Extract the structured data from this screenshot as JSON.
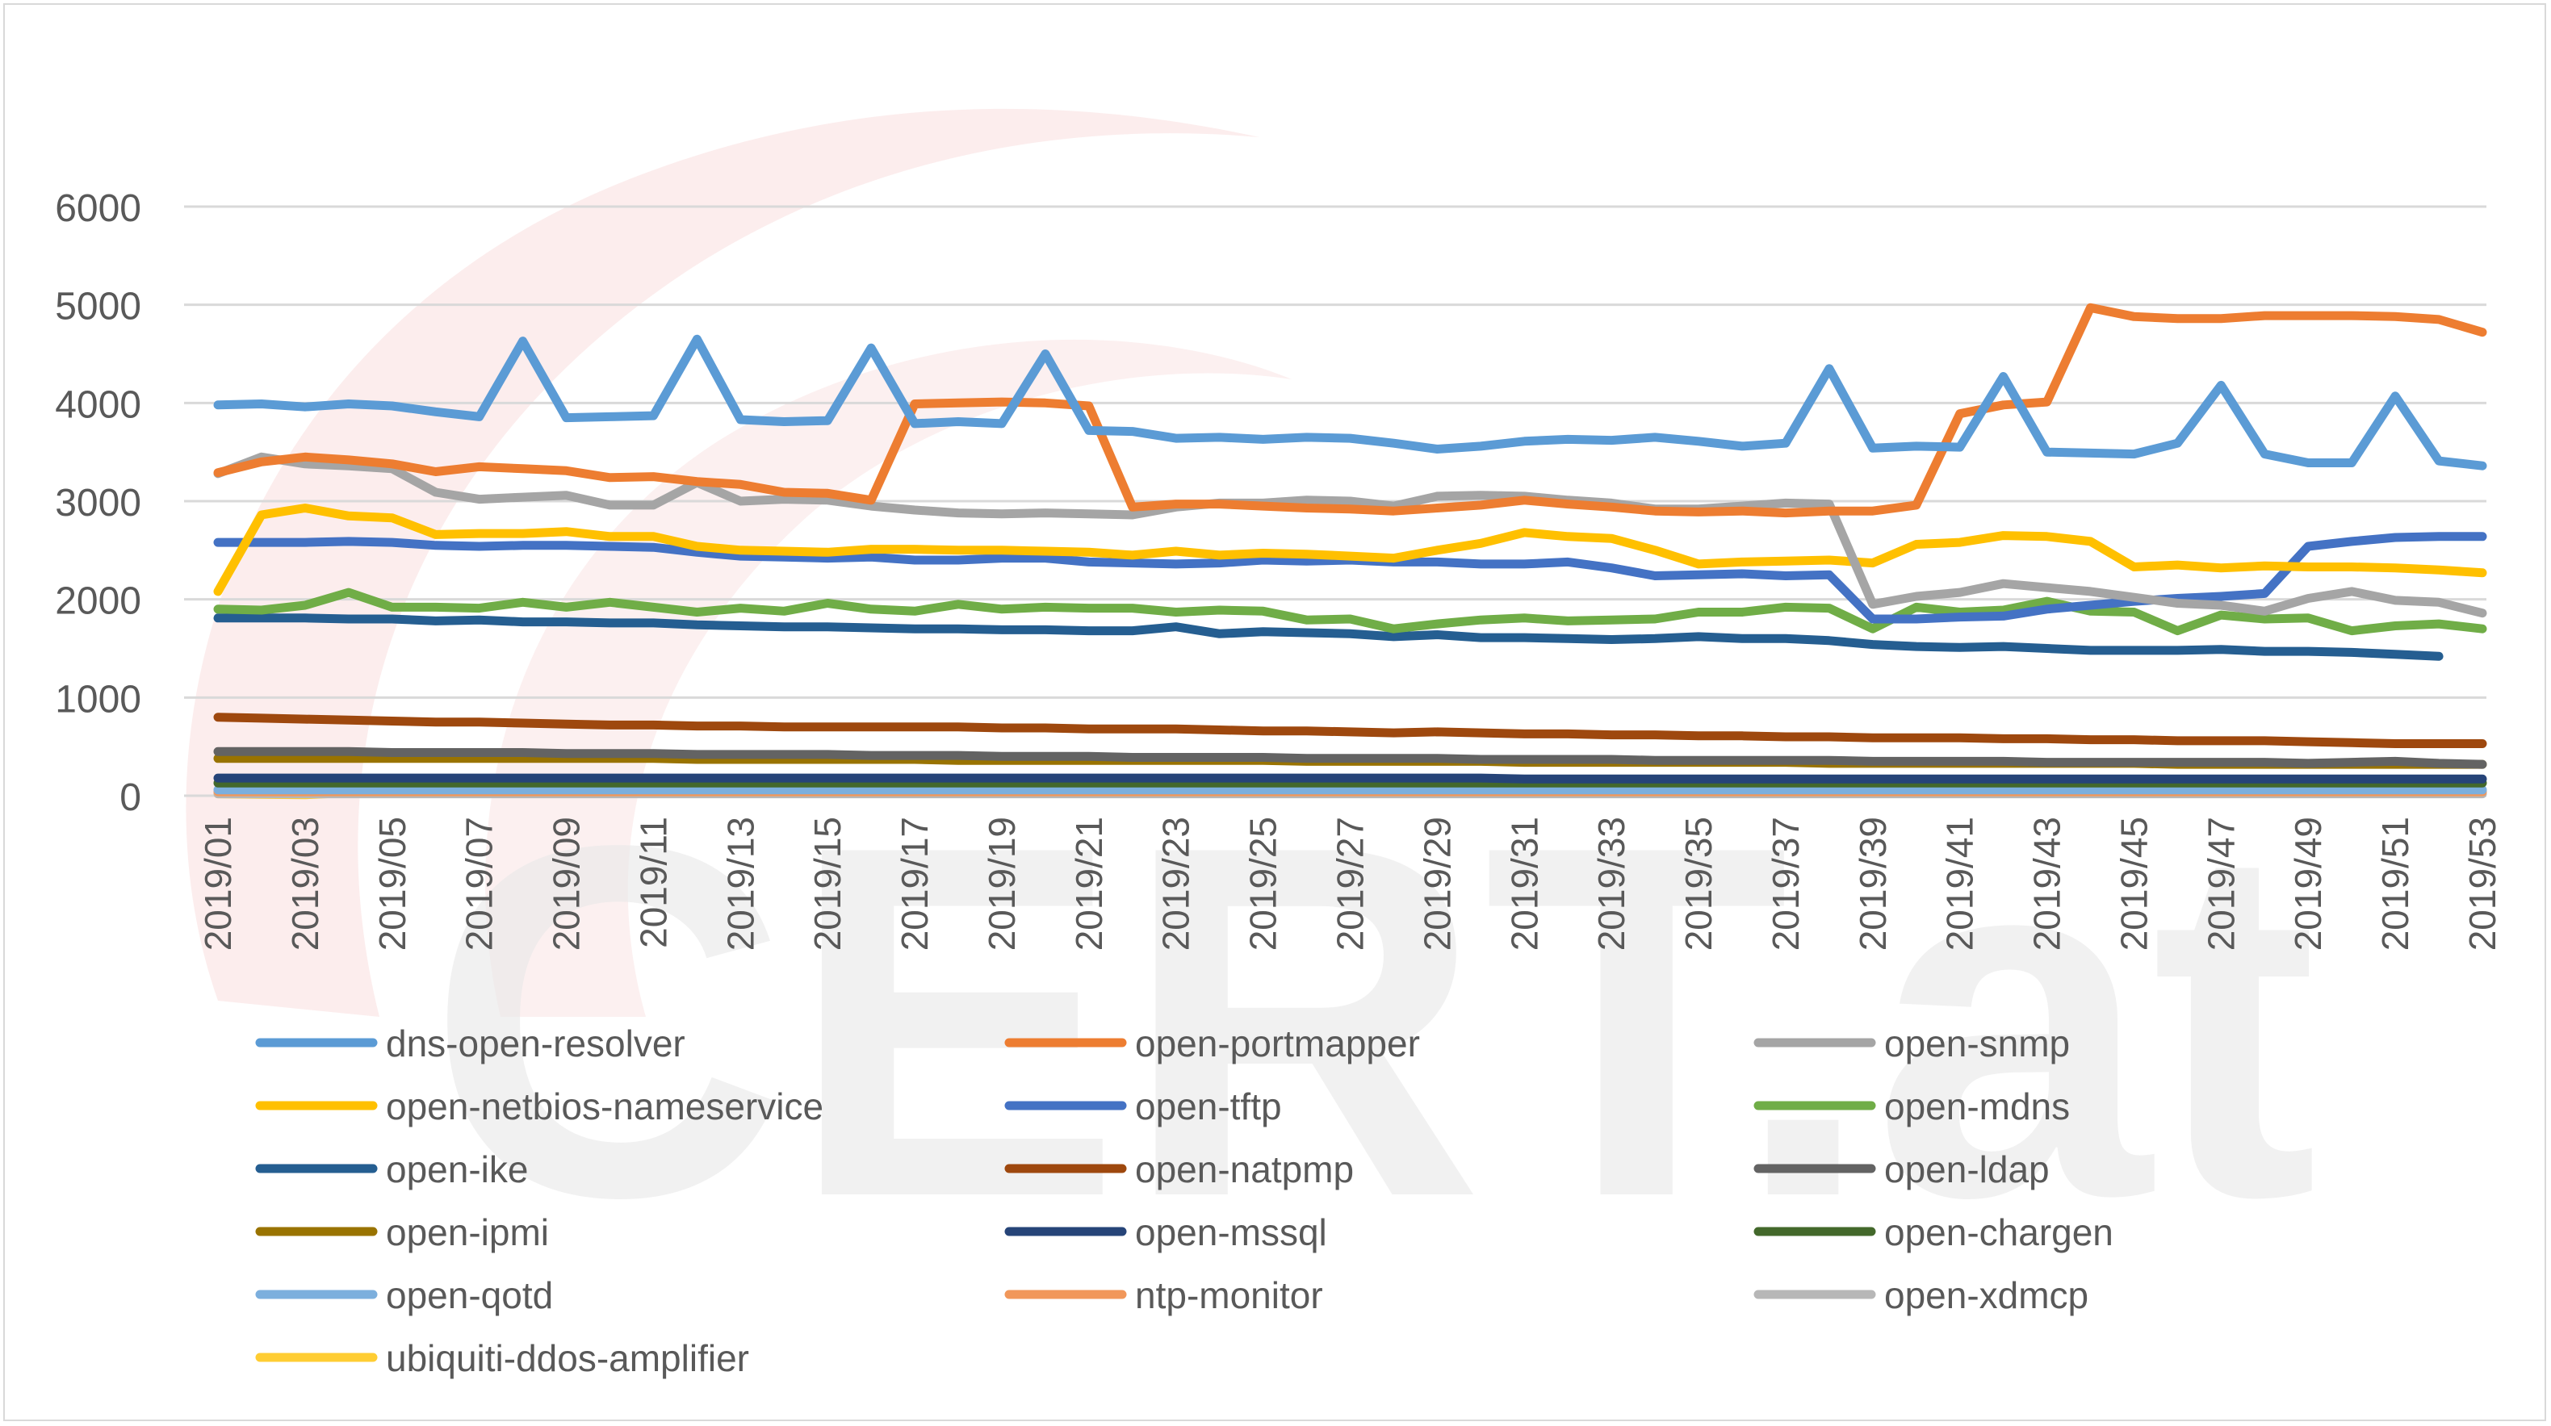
{
  "chart_data": {
    "type": "line",
    "title": "",
    "xlabel": "",
    "ylabel": "",
    "ylim": [
      0,
      6000
    ],
    "yticks": [
      0,
      1000,
      2000,
      3000,
      4000,
      5000,
      6000
    ],
    "grid": "horizontal",
    "legend_position": "bottom",
    "watermark_text": "CERT.at",
    "categories": [
      "2019/01",
      "2019/02",
      "2019/03",
      "2019/04",
      "2019/05",
      "2019/06",
      "2019/07",
      "2019/08",
      "2019/09",
      "2019/10",
      "2019/11",
      "2019/12",
      "2019/13",
      "2019/14",
      "2019/15",
      "2019/16",
      "2019/17",
      "2019/18",
      "2019/19",
      "2019/20",
      "2019/21",
      "2019/22",
      "2019/23",
      "2019/24",
      "2019/25",
      "2019/26",
      "2019/27",
      "2019/28",
      "2019/29",
      "2019/30",
      "2019/31",
      "2019/32",
      "2019/33",
      "2019/34",
      "2019/35",
      "2019/36",
      "2019/37",
      "2019/38",
      "2019/39",
      "2019/40",
      "2019/41",
      "2019/42",
      "2019/43",
      "2019/44",
      "2019/45",
      "2019/46",
      "2019/47",
      "2019/48",
      "2019/49",
      "2019/50",
      "2019/51",
      "2019/52",
      "2019/53"
    ],
    "tick_labels": [
      "2019/01",
      "2019/03",
      "2019/05",
      "2019/07",
      "2019/09",
      "2019/11",
      "2019/13",
      "2019/15",
      "2019/17",
      "2019/19",
      "2019/21",
      "2019/23",
      "2019/25",
      "2019/27",
      "2019/29",
      "2019/31",
      "2019/33",
      "2019/35",
      "2019/37",
      "2019/39",
      "2019/41",
      "2019/43",
      "2019/45",
      "2019/47",
      "2019/49",
      "2019/51",
      "2019/53"
    ],
    "series": [
      {
        "name": "dns-open-resolver",
        "color": "#5b9bd5",
        "values": [
          3980,
          3990,
          3960,
          3990,
          3970,
          3910,
          3860,
          4630,
          3850,
          3860,
          3870,
          4650,
          3830,
          3810,
          3820,
          4560,
          3790,
          3810,
          3790,
          4500,
          3720,
          3710,
          3640,
          3650,
          3630,
          3650,
          3640,
          3590,
          3530,
          3560,
          3610,
          3630,
          3620,
          3650,
          3610,
          3560,
          3590,
          4350,
          3540,
          3560,
          3550,
          4270,
          3500,
          3490,
          3480,
          3590,
          4180,
          3480,
          3390,
          3390,
          4070,
          3410,
          3360
        ]
      },
      {
        "name": "open-portmapper",
        "color": "#ed7d31",
        "values": [
          3290,
          3400,
          3450,
          3420,
          3380,
          3300,
          3350,
          3330,
          3310,
          3240,
          3250,
          3200,
          3170,
          3090,
          3080,
          3010,
          3990,
          4000,
          4010,
          4000,
          3970,
          2940,
          2970,
          2970,
          2950,
          2930,
          2920,
          2900,
          2930,
          2960,
          3010,
          2970,
          2940,
          2900,
          2890,
          2900,
          2880,
          2900,
          2900,
          2960,
          3890,
          3980,
          4010,
          4970,
          4880,
          4860,
          4860,
          4890,
          4890,
          4890,
          4880,
          4850,
          4720
        ]
      },
      {
        "name": "open-snmp",
        "color": "#a5a5a5",
        "values": [
          3280,
          3450,
          3380,
          3360,
          3330,
          3090,
          3020,
          3040,
          3060,
          2960,
          2960,
          3190,
          3000,
          3020,
          3010,
          2950,
          2910,
          2880,
          2870,
          2880,
          2870,
          2860,
          2940,
          2980,
          2980,
          3010,
          3000,
          2950,
          3050,
          3060,
          3050,
          3010,
          2980,
          2920,
          2920,
          2950,
          2980,
          2970,
          1950,
          2030,
          2070,
          2160,
          2120,
          2080,
          2020,
          1960,
          1940,
          1880,
          2010,
          2080,
          1990,
          1970,
          1860
        ]
      },
      {
        "name": "open-netbios-nameservice",
        "color": "#ffc000",
        "values": [
          2080,
          2860,
          2930,
          2850,
          2830,
          2660,
          2670,
          2670,
          2690,
          2640,
          2640,
          2540,
          2500,
          2490,
          2480,
          2510,
          2510,
          2500,
          2500,
          2490,
          2480,
          2450,
          2490,
          2450,
          2470,
          2460,
          2440,
          2420,
          2500,
          2570,
          2680,
          2640,
          2620,
          2500,
          2360,
          2380,
          2390,
          2400,
          2370,
          2560,
          2580,
          2650,
          2640,
          2590,
          2330,
          2350,
          2320,
          2340,
          2330,
          2330,
          2320,
          2300,
          2270
        ]
      },
      {
        "name": "open-tftp",
        "color": "#4472c4",
        "values": [
          2580,
          2580,
          2580,
          2590,
          2580,
          2550,
          2540,
          2550,
          2550,
          2540,
          2530,
          2480,
          2440,
          2430,
          2420,
          2430,
          2400,
          2400,
          2420,
          2420,
          2380,
          2370,
          2360,
          2370,
          2400,
          2390,
          2400,
          2380,
          2380,
          2360,
          2360,
          2380,
          2320,
          2240,
          2250,
          2260,
          2240,
          2250,
          1800,
          1800,
          1820,
          1830,
          1900,
          1940,
          1980,
          2010,
          2030,
          2060,
          2540,
          2590,
          2630,
          2640,
          2640
        ]
      },
      {
        "name": "open-mdns",
        "color": "#70ad47",
        "values": [
          1900,
          1890,
          1940,
          2070,
          1920,
          1920,
          1910,
          1970,
          1920,
          1970,
          1920,
          1870,
          1910,
          1880,
          1960,
          1900,
          1880,
          1950,
          1900,
          1920,
          1910,
          1910,
          1870,
          1890,
          1880,
          1790,
          1800,
          1700,
          1750,
          1790,
          1810,
          1780,
          1790,
          1800,
          1870,
          1870,
          1920,
          1910,
          1700,
          1920,
          1870,
          1890,
          1980,
          1880,
          1870,
          1680,
          1840,
          1800,
          1810,
          1680,
          1730,
          1750,
          1700
        ]
      },
      {
        "name": "open-ike",
        "color": "#255e91",
        "values": [
          1810,
          1810,
          1810,
          1800,
          1800,
          1780,
          1790,
          1770,
          1770,
          1760,
          1760,
          1740,
          1730,
          1720,
          1720,
          1710,
          1700,
          1700,
          1690,
          1690,
          1680,
          1680,
          1720,
          1650,
          1670,
          1660,
          1650,
          1620,
          1640,
          1610,
          1610,
          1600,
          1590,
          1600,
          1620,
          1600,
          1600,
          1580,
          1540,
          1520,
          1510,
          1520,
          1500,
          1480,
          1480,
          1480,
          1490,
          1470,
          1470,
          1460,
          1440,
          1420,
          null
        ]
      },
      {
        "name": "open-natpmp",
        "color": "#9e480e",
        "values": [
          800,
          790,
          780,
          770,
          760,
          750,
          750,
          740,
          730,
          720,
          720,
          710,
          710,
          700,
          700,
          700,
          700,
          700,
          690,
          690,
          680,
          680,
          680,
          670,
          660,
          660,
          650,
          640,
          650,
          640,
          630,
          630,
          620,
          620,
          610,
          610,
          600,
          600,
          590,
          590,
          590,
          580,
          580,
          570,
          570,
          560,
          560,
          560,
          550,
          540,
          530,
          530,
          530
        ]
      },
      {
        "name": "open-ldap",
        "color": "#636363",
        "values": [
          450,
          450,
          450,
          450,
          440,
          440,
          440,
          440,
          430,
          430,
          430,
          420,
          420,
          420,
          420,
          410,
          410,
          410,
          400,
          400,
          400,
          390,
          390,
          390,
          390,
          380,
          380,
          380,
          380,
          370,
          370,
          370,
          370,
          360,
          360,
          360,
          360,
          360,
          350,
          350,
          350,
          350,
          340,
          340,
          340,
          340,
          340,
          340,
          330,
          340,
          350,
          330,
          320
        ]
      },
      {
        "name": "open-ipmi",
        "color": "#997300",
        "values": [
          380,
          380,
          380,
          380,
          380,
          380,
          380,
          380,
          380,
          380,
          380,
          370,
          370,
          370,
          370,
          370,
          370,
          360,
          360,
          360,
          360,
          360,
          360,
          360,
          360,
          350,
          350,
          350,
          350,
          350,
          340,
          340,
          340,
          340,
          340,
          340,
          340,
          330,
          330,
          330,
          330,
          330,
          330,
          330,
          330,
          320,
          320,
          320,
          320,
          320,
          320,
          320,
          320
        ]
      },
      {
        "name": "open-mssql",
        "color": "#264478",
        "values": [
          180,
          180,
          180,
          180,
          180,
          180,
          180,
          180,
          180,
          180,
          180,
          180,
          180,
          180,
          180,
          180,
          180,
          180,
          180,
          180,
          180,
          180,
          180,
          180,
          180,
          180,
          180,
          180,
          180,
          180,
          170,
          170,
          170,
          170,
          170,
          170,
          170,
          170,
          170,
          170,
          170,
          170,
          170,
          170,
          170,
          170,
          170,
          170,
          170,
          170,
          170,
          170,
          170
        ]
      },
      {
        "name": "open-chargen",
        "color": "#43682b",
        "values": [
          130,
          130,
          130,
          130,
          130,
          130,
          130,
          130,
          130,
          130,
          130,
          130,
          130,
          130,
          130,
          130,
          130,
          130,
          130,
          130,
          130,
          130,
          130,
          130,
          130,
          130,
          130,
          130,
          130,
          130,
          130,
          130,
          130,
          130,
          130,
          130,
          130,
          130,
          130,
          130,
          130,
          130,
          130,
          130,
          130,
          130,
          130,
          130,
          130,
          130,
          130,
          130,
          130
        ]
      },
      {
        "name": "open-qotd",
        "color": "#7cafdd",
        "values": [
          60,
          60,
          60,
          60,
          60,
          60,
          60,
          60,
          60,
          60,
          60,
          60,
          60,
          60,
          60,
          60,
          60,
          60,
          60,
          60,
          60,
          60,
          60,
          60,
          60,
          60,
          60,
          60,
          60,
          60,
          60,
          60,
          60,
          60,
          60,
          60,
          60,
          60,
          60,
          60,
          60,
          60,
          60,
          60,
          60,
          60,
          60,
          60,
          60,
          60,
          60,
          60,
          60
        ]
      },
      {
        "name": "ntp-monitor",
        "color": "#f1975a",
        "values": [
          40,
          40,
          40,
          40,
          40,
          40,
          40,
          40,
          40,
          40,
          40,
          40,
          40,
          40,
          40,
          40,
          40,
          40,
          40,
          40,
          40,
          40,
          40,
          40,
          40,
          40,
          40,
          40,
          40,
          40,
          40,
          40,
          40,
          40,
          40,
          40,
          40,
          40,
          40,
          40,
          40,
          40,
          40,
          40,
          40,
          40,
          40,
          40,
          40,
          40,
          40,
          40,
          40
        ]
      },
      {
        "name": "open-xdmcp",
        "color": "#b7b7b7",
        "values": [
          20,
          20,
          20,
          20,
          20,
          20,
          20,
          20,
          20,
          20,
          20,
          20,
          20,
          20,
          20,
          20,
          20,
          20,
          20,
          20,
          20,
          20,
          20,
          20,
          20,
          20,
          20,
          20,
          20,
          20,
          20,
          20,
          20,
          20,
          20,
          20,
          20,
          20,
          20,
          20,
          20,
          20,
          20,
          20,
          20,
          20,
          20,
          20,
          20,
          20,
          20,
          20,
          20
        ]
      },
      {
        "name": "ubiquiti-ddos-amplifier",
        "color": "#ffcd33",
        "values": [
          20,
          15,
          10,
          30,
          80,
          null,
          null,
          null,
          null,
          null,
          null,
          null,
          null,
          null,
          null,
          null,
          null,
          null,
          null,
          null,
          null,
          null,
          null,
          null,
          null,
          null,
          null,
          null,
          null,
          null,
          null,
          null,
          null,
          null,
          null,
          null,
          null,
          null,
          null,
          null,
          null,
          null,
          null,
          null,
          null,
          null,
          null,
          null,
          null,
          null,
          null,
          null,
          null
        ]
      }
    ]
  }
}
